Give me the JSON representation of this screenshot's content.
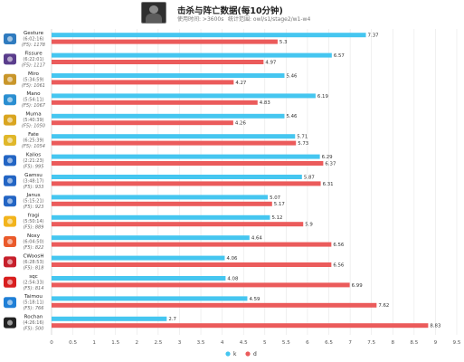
{
  "header": {
    "title": "击杀与阵亡数据(每10分钟)",
    "time_used": "使用时间: >3600s",
    "stat_range": "统计范围: owl/s1/stage2/w1-w4"
  },
  "colors": {
    "k": "#45c6f0",
    "d": "#eb5b5b"
  },
  "legend": [
    "k",
    "d"
  ],
  "chart_data": {
    "type": "bar",
    "orientation": "horizontal",
    "title": "击杀与阵亡数据(每10分钟)",
    "xlim": [
      0,
      9.5
    ],
    "x_ticks": [
      "0",
      "0.5",
      "1",
      "1.5",
      "2",
      "2.5",
      "3",
      "3.5",
      "4",
      "4.5",
      "5",
      "5.5",
      "6",
      "6.5",
      "7",
      "7.5",
      "8",
      "8.5",
      "9",
      "9.5"
    ],
    "grid": true,
    "legend_position": "bottom",
    "series": [
      {
        "name": "k",
        "values": [
          7.37,
          6.57,
          5.46,
          6.19,
          5.46,
          5.71,
          6.29,
          5.87,
          5.07,
          5.12,
          4.64,
          4.06,
          4.08,
          4.59,
          2.7
        ]
      },
      {
        "name": "d",
        "values": [
          5.3,
          4.97,
          4.27,
          4.83,
          4.26,
          5.73,
          6.37,
          6.31,
          5.17,
          5.9,
          6.56,
          6.56,
          6.99,
          7.62,
          8.83
        ]
      }
    ],
    "players": [
      {
        "name": "Gesture",
        "time": "(6:02:16)",
        "games": "(F5): 1178",
        "team_color": "#2f7bbf"
      },
      {
        "name": "Fissure",
        "time": "(6:22:01)",
        "games": "(F5): 1117",
        "team_color": "#5a3d8c"
      },
      {
        "name": "Miro",
        "time": "(5:34:59)",
        "games": "(F5): 1061",
        "team_color": "#c9962a"
      },
      {
        "name": "Mano",
        "time": "(5:54:11)",
        "games": "(F5): 1067",
        "team_color": "#2a8ed1"
      },
      {
        "name": "Muma",
        "time": "(5:40:39)",
        "games": "(F5): 1050",
        "team_color": "#d9a520"
      },
      {
        "name": "Fate",
        "time": "(6:25:39)",
        "games": "(F5): 1054",
        "team_color": "#e0b72a"
      },
      {
        "name": "Kalios",
        "time": "(2:21:23)",
        "games": "(F5): 995",
        "team_color": "#2365c4"
      },
      {
        "name": "Gamsu",
        "time": "(3:48:17)",
        "games": "(F5): 933",
        "team_color": "#2365c4"
      },
      {
        "name": "Janus",
        "time": "(5:15:21)",
        "games": "(F5): 923",
        "team_color": "#2365c4"
      },
      {
        "name": "fragi",
        "time": "(5:50:14)",
        "games": "(F5): 889",
        "team_color": "#f2b41c"
      },
      {
        "name": "Noxy",
        "time": "(6:04:50)",
        "games": "(F5): 822",
        "team_color": "#ea5a2b"
      },
      {
        "name": "CWoosH",
        "time": "(6:28:53)",
        "games": "(F5): 818",
        "team_color": "#c61f2b"
      },
      {
        "name": "sqc",
        "time": "(2:54:33)",
        "games": "(F5): 814",
        "team_color": "#d81e1e"
      },
      {
        "name": "Taimou",
        "time": "(5:18:11)",
        "games": "(F5): 766",
        "team_color": "#1f7fd6"
      },
      {
        "name": "Rochan",
        "time": "(4:26:16)",
        "games": "(F5): 500",
        "team_color": "#222222"
      }
    ]
  }
}
